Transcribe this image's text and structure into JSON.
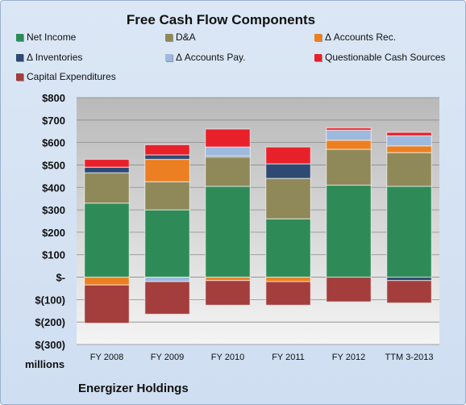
{
  "chart_data": {
    "type": "bar",
    "stacked": true,
    "title": "Free Cash Flow Components",
    "ylabel": "millions",
    "ylim": [
      -300,
      800
    ],
    "yticks": [
      800,
      700,
      600,
      500,
      400,
      300,
      200,
      100,
      0,
      -100,
      -200,
      -300
    ],
    "ytick_labels": [
      "$800",
      "$700",
      "$600",
      "$500",
      "$400",
      "$300",
      "$200",
      "$100",
      "$-",
      "$(100)",
      "$(200)",
      "$(300)"
    ],
    "categories": [
      "FY 2008",
      "FY 2009",
      "FY 2010",
      "FY 2011",
      "FY 2012",
      "TTM 3-2013"
    ],
    "legend_position": "top",
    "grid": true,
    "series": [
      {
        "name": "Net Income",
        "color": "#2e8b57",
        "values": [
          330,
          300,
          405,
          260,
          410,
          405
        ]
      },
      {
        "name": "D&A",
        "color": "#8f8858",
        "values": [
          135,
          125,
          130,
          180,
          160,
          150
        ]
      },
      {
        "name": "Δ Accounts Rec.",
        "color": "#ec7f22",
        "values": [
          -35,
          100,
          -15,
          -20,
          40,
          30
        ]
      },
      {
        "name": "Δ Inventories",
        "color": "#2e4a72",
        "values": [
          25,
          20,
          5,
          65,
          0,
          -15
        ]
      },
      {
        "name": "Δ Accounts Pay.",
        "color": "#9db9de",
        "values": [
          0,
          -20,
          40,
          0,
          45,
          45
        ]
      },
      {
        "name": "Questionable Cash Sources",
        "color": "#e8202a",
        "values": [
          35,
          45,
          80,
          75,
          10,
          15
        ]
      },
      {
        "name": "Capital Expenditures",
        "color": "#a33e3c",
        "values": [
          -170,
          -145,
          -110,
          -105,
          -110,
          -100
        ]
      }
    ]
  },
  "source": "Energizer Holdings"
}
